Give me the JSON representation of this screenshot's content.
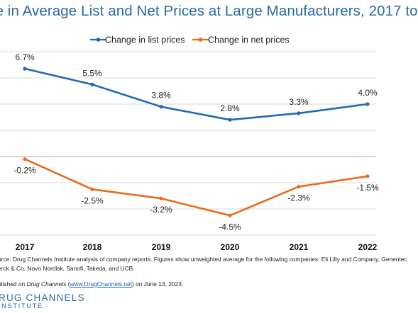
{
  "chart_data": {
    "type": "line",
    "title": "ge in Average List and Net Prices at Large Manufacturers, 2017 to",
    "categories": [
      "2017",
      "2018",
      "2019",
      "2020",
      "2021",
      "2022"
    ],
    "series": [
      {
        "name": "Change in list prices",
        "color": "#2369b1",
        "values": [
          6.7,
          5.5,
          3.8,
          2.8,
          3.3,
          4.0
        ],
        "labels": [
          "6.7%",
          "5.5%",
          "3.8%",
          "2.8%",
          "3.3%",
          "4.0%"
        ]
      },
      {
        "name": "Change in net prices",
        "color": "#ea6a1e",
        "values": [
          -0.2,
          -2.5,
          -3.2,
          -4.5,
          -2.3,
          -1.5
        ],
        "labels": [
          "-0.2%",
          "-2.5%",
          "-3.2%",
          "-4.5%",
          "-2.3%",
          "-1.5%"
        ]
      }
    ],
    "ylim": [
      -6,
      8
    ],
    "grid": true,
    "legend": "top"
  },
  "footnote": {
    "source_line1": "urce: Drug Channels Institute analysis of company reports. Figures show unweighted average for the following companies: Eli Lilly and Company, Genentec",
    "source_line2": "erck & Co, Novo Nordisk, Sanofi, Takeda, and UCB.",
    "published_prefix": "blished on ",
    "published_italic": "Drug Channels",
    "published_open": " (",
    "published_link": "www.DrugChannels.net",
    "published_suffix": ") on June 13, 2023."
  },
  "logo": {
    "line1": "RUG CHANNELS",
    "line2": "INSTITUTE"
  }
}
